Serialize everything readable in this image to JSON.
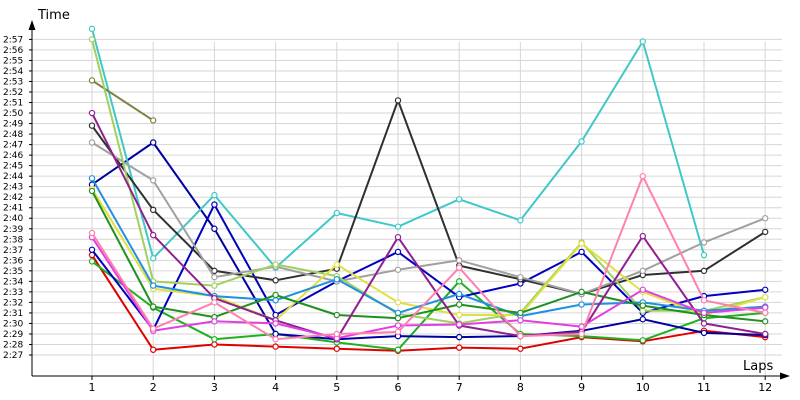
{
  "chart_data": {
    "type": "line",
    "xlabel": "Laps",
    "ylabel": "Time",
    "grid": true,
    "legend": "none",
    "x": [
      1,
      2,
      3,
      4,
      5,
      6,
      7,
      8,
      9,
      10,
      11,
      12
    ],
    "x_ticks": [
      "1",
      "2",
      "3",
      "4",
      "5",
      "6",
      "7",
      "8",
      "9",
      "10",
      "11",
      "12"
    ],
    "y_ticks": [
      "2:27",
      "2:28",
      "2:29",
      "2:30",
      "2:31",
      "2:32",
      "2:33",
      "2:34",
      "2:35",
      "2:36",
      "2:37",
      "2:38",
      "2:39",
      "2:40",
      "2:41",
      "2:42",
      "2:43",
      "2:44",
      "2:45",
      "2:46",
      "2:47",
      "2:48",
      "2:49",
      "2:50",
      "2:51",
      "2:52",
      "2:53",
      "2:54",
      "2:55",
      "2:56",
      "2:57"
    ],
    "ylim": [
      "2:26",
      "2:58"
    ],
    "series": [
      {
        "color": "#e00000",
        "values": [
          "2:36.5",
          "2:27.5",
          "2:28.0",
          "2:27.8",
          "2:27.6",
          "2:27.4",
          "2:27.7",
          "2:27.6",
          "2:28.7",
          "2:28.3",
          "2:29.3",
          "2:28.7"
        ]
      },
      {
        "color": "#20b020",
        "values": [
          "2:35.9",
          "2:31.5",
          "2:28.5",
          "2:29.0",
          "2:28.2",
          "2:27.5",
          "2:34.0",
          "2:29.0",
          "2:28.8",
          "2:28.4",
          "2:30.5",
          "2:31.0"
        ]
      },
      {
        "color": "#0000c0",
        "values": [
          "2:37.0",
          "2:29.4",
          "2:41.3",
          "2:30.8",
          "2:34.0",
          "2:36.8",
          "2:32.5",
          "2:33.8",
          "2:36.8",
          "2:31.0",
          "2:32.6",
          "2:33.2"
        ]
      },
      {
        "color": "#0000a0",
        "values": [
          "2:43.2",
          "2:47.2",
          "2:39.0",
          "2:29.0",
          "2:28.5",
          "2:28.8",
          "2:28.7",
          "2:28.8",
          "2:29.3",
          "2:30.4",
          "2:29.1",
          "2:28.9"
        ]
      },
      {
        "color": "#40c8c8",
        "values": [
          "2:58.0",
          "2:36.2",
          "2:42.2",
          "2:35.3",
          "2:40.5",
          "2:39.2",
          "2:41.8",
          "2:39.8",
          "2:47.3",
          "2:56.8",
          "2:36.5",
          null
        ]
      },
      {
        "color": "#303030",
        "values": [
          "2:48.8",
          "2:40.8",
          "2:35.0",
          "2:34.1",
          "2:35.2",
          "2:51.2",
          "2:35.5",
          "2:34.2",
          "2:32.8",
          "2:34.6",
          "2:35.0",
          "2:38.7"
        ]
      },
      {
        "color": "#a0a0a0",
        "values": [
          "2:47.2",
          "2:43.6",
          "2:34.4",
          "2:35.4",
          "2:34.0",
          "2:35.1",
          "2:36.0",
          "2:34.4",
          "2:32.8",
          "2:35.0",
          "2:37.7",
          "2:40.0"
        ]
      },
      {
        "color": "#808040",
        "values": [
          "2:53.1",
          "2:49.3",
          null,
          null,
          null,
          null,
          null,
          null,
          null,
          null,
          null,
          null
        ]
      },
      {
        "color": "#a0d060",
        "values": [
          "2:57.0",
          "2:34.0",
          "2:33.6",
          "2:35.6",
          "2:34.5",
          "2:30.9",
          "2:30.0",
          "2:31.0",
          "2:37.7",
          "2:31.2",
          "2:31.2",
          "2:32.5"
        ]
      },
      {
        "color": "#e0e040",
        "values": [
          "2:42.8",
          "2:33.3",
          "2:32.6",
          "2:30.3",
          "2:35.6",
          "2:32.0",
          "2:30.8",
          "2:30.8",
          "2:37.6",
          "2:33.0",
          "2:30.8",
          "2:32.5"
        ]
      },
      {
        "color": "#2090e0",
        "values": [
          "2:43.8",
          "2:33.6",
          "2:32.6",
          "2:32.2",
          "2:34.2",
          "2:31.0",
          "2:32.8",
          "2:30.7",
          "2:31.8",
          "2:32.0",
          "2:31.2",
          "2:31.6"
        ]
      },
      {
        "color": "#209020",
        "values": [
          "2:42.6",
          "2:31.6",
          "2:30.6",
          "2:32.7",
          "2:30.8",
          "2:30.5",
          "2:31.8",
          "2:31.0",
          "2:33.0",
          "2:31.7",
          "2:30.8",
          "2:30.2"
        ]
      },
      {
        "color": "#902090",
        "values": [
          "2:50.0",
          "2:38.4",
          "2:32.4",
          "2:30.3",
          "2:28.5",
          "2:38.2",
          "2:29.8",
          "2:28.8",
          "2:29.2",
          "2:38.3",
          "2:30.0",
          "2:29.0"
        ]
      },
      {
        "color": "#e040e0",
        "values": [
          "2:38.2",
          "2:29.3",
          "2:30.2",
          "2:30.0",
          "2:28.6",
          "2:29.8",
          "2:29.9",
          "2:30.3",
          "2:29.7",
          "2:33.2",
          "2:31.0",
          "2:31.5"
        ]
      },
      {
        "color": "#ff80b0",
        "values": [
          "2:38.6",
          "2:29.5",
          "2:32.0",
          "2:28.5",
          "2:29.0",
          "2:29.2",
          "2:35.3",
          "2:28.8",
          "2:29.0",
          "2:44.0",
          "2:32.2",
          "2:31.0"
        ]
      }
    ]
  }
}
